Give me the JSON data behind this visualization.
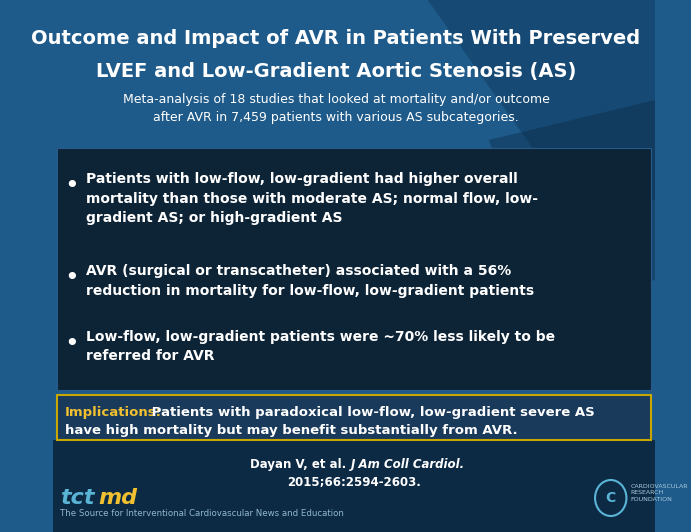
{
  "title_line1": "Outcome and Impact of AVR in Patients With Preserved",
  "title_line2": "LVEF and Low-Gradient Aortic Stenosis (AS)",
  "subtitle": "Meta-analysis of 18 studies that looked at mortality and/or outcome\nafter AVR in 7,459 patients with various AS subcategories.",
  "bullets": [
    "Patients with low-flow, low-gradient had higher overall\nmortality than those with moderate AS; normal flow, low-\ngradient AS; or high-gradient AS",
    "AVR (surgical or transcatheter) associated with a 56%\nreduction in mortality for low-flow, low-gradient patients",
    "Low-flow, low-gradient patients were ~70% less likely to be\nreferred for AVR"
  ],
  "implications_label": "Implications:",
  "implications_text1": " Patients with paradoxical low-flow, low-gradient severe AS",
  "implications_text2": "have high mortality but may benefit substantially from AVR.",
  "citation_normal": "Dayan V, et al. ",
  "citation_italic": "J Am Coll Cardiol.",
  "citation_line2": "2015;66:2594-2603.",
  "footer_text": "The Source for Interventional Cardiovascular News and Education",
  "bg_color": "#1e5a8a",
  "bg_dark": "#0d2a45",
  "bullet_box_color": "#0d2336",
  "bullet_box_edge": "#2a5a8a",
  "impl_box_color": "#1a3a5c",
  "impl_box_edge": "#c8a800",
  "title_color": "#ffffff",
  "subtitle_color": "#ffffff",
  "bullet_color": "#ffffff",
  "impl_label_color": "#f0c030",
  "impl_text_color": "#ffffff",
  "citation_color": "#ffffff",
  "footer_color": "#90b8cc",
  "tct_color": "#5ab4d6",
  "md_color": "#f0c030",
  "logo_color": "#aaccdd"
}
